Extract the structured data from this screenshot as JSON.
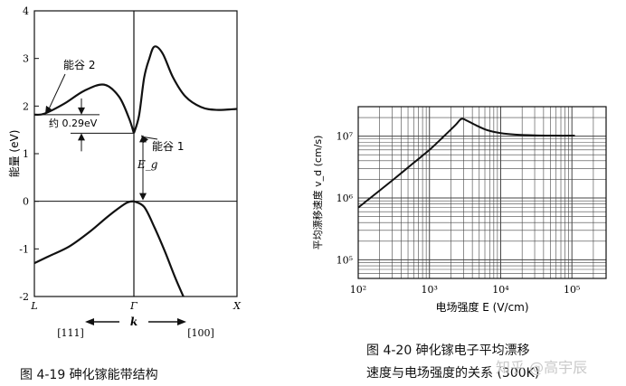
{
  "chart_data": [
    {
      "type": "line",
      "title": "",
      "ylabel": "能量 (eV)",
      "ylim": [
        -2,
        4
      ],
      "yticks": [
        "4",
        "3",
        "2",
        "1",
        "0",
        "-1",
        "-2"
      ],
      "xlabel": "k",
      "xticks": [
        "L",
        "Γ",
        "X"
      ],
      "direction_labels": [
        "[111]",
        "[100]"
      ],
      "annotations": {
        "valley2": "能谷 2",
        "valley1": "能谷 1",
        "gap_diff": "约 0.29eV",
        "eg": "E_g"
      },
      "series": [
        {
          "x": [
            -1,
            -0.9,
            -0.7,
            -0.5,
            -0.3,
            -0.15,
            -0.05,
            0
          ],
          "y": [
            1.82,
            1.84,
            2.05,
            2.32,
            2.45,
            2.2,
            1.75,
            1.43
          ]
        },
        {
          "x": [
            0,
            0.05,
            0.1,
            0.15,
            0.2,
            0.28,
            0.38,
            0.5,
            0.65,
            0.8,
            1.0
          ],
          "y": [
            1.43,
            1.8,
            2.6,
            3.0,
            3.25,
            3.1,
            2.6,
            2.2,
            1.98,
            1.92,
            1.94
          ]
        },
        {
          "x": [
            -1,
            -0.85,
            -0.65,
            -0.45,
            -0.25,
            -0.08,
            0
          ],
          "y": [
            -1.3,
            -1.15,
            -0.95,
            -0.65,
            -0.3,
            -0.04,
            0
          ]
        },
        {
          "x": [
            0,
            0.1,
            0.2,
            0.3,
            0.4,
            0.48
          ],
          "y": [
            0,
            -0.12,
            -0.55,
            -1.05,
            -1.6,
            -2.0
          ]
        }
      ],
      "caption": "图 4-19 砷化镓能带结构"
    },
    {
      "type": "line",
      "log_x": true,
      "log_y": true,
      "grid": true,
      "title": "",
      "ylabel": "平均漂移速度 v_d (cm/s)",
      "xlabel": "电场强度 E (V/cm)",
      "xlim": [
        100,
        100000
      ],
      "ylim": [
        50000,
        30000000
      ],
      "xticks": [
        "10²",
        "10³",
        "10⁴",
        "10⁵"
      ],
      "yticks": [
        "10⁵",
        "10⁶",
        "10⁷"
      ],
      "series": [
        {
          "x": [
            100,
            180,
            330,
            600,
            1000,
            1600,
            2300,
            2800,
            3300,
            4500,
            6500,
            10000,
            16000,
            30000,
            60000,
            110000
          ],
          "y": [
            700000,
            1200000,
            2100000,
            3700000,
            6000000,
            10000000,
            15000000,
            19000000,
            18000000,
            15000000,
            12500000,
            11200000,
            10600000,
            10300000,
            10200000,
            10200000
          ]
        }
      ],
      "caption_line1": "图 4-20 砷化镓电子平均漂移",
      "caption_line2": "速度与电场强度的关系 (300K)"
    }
  ],
  "watermark": "知乎 @高宇辰"
}
